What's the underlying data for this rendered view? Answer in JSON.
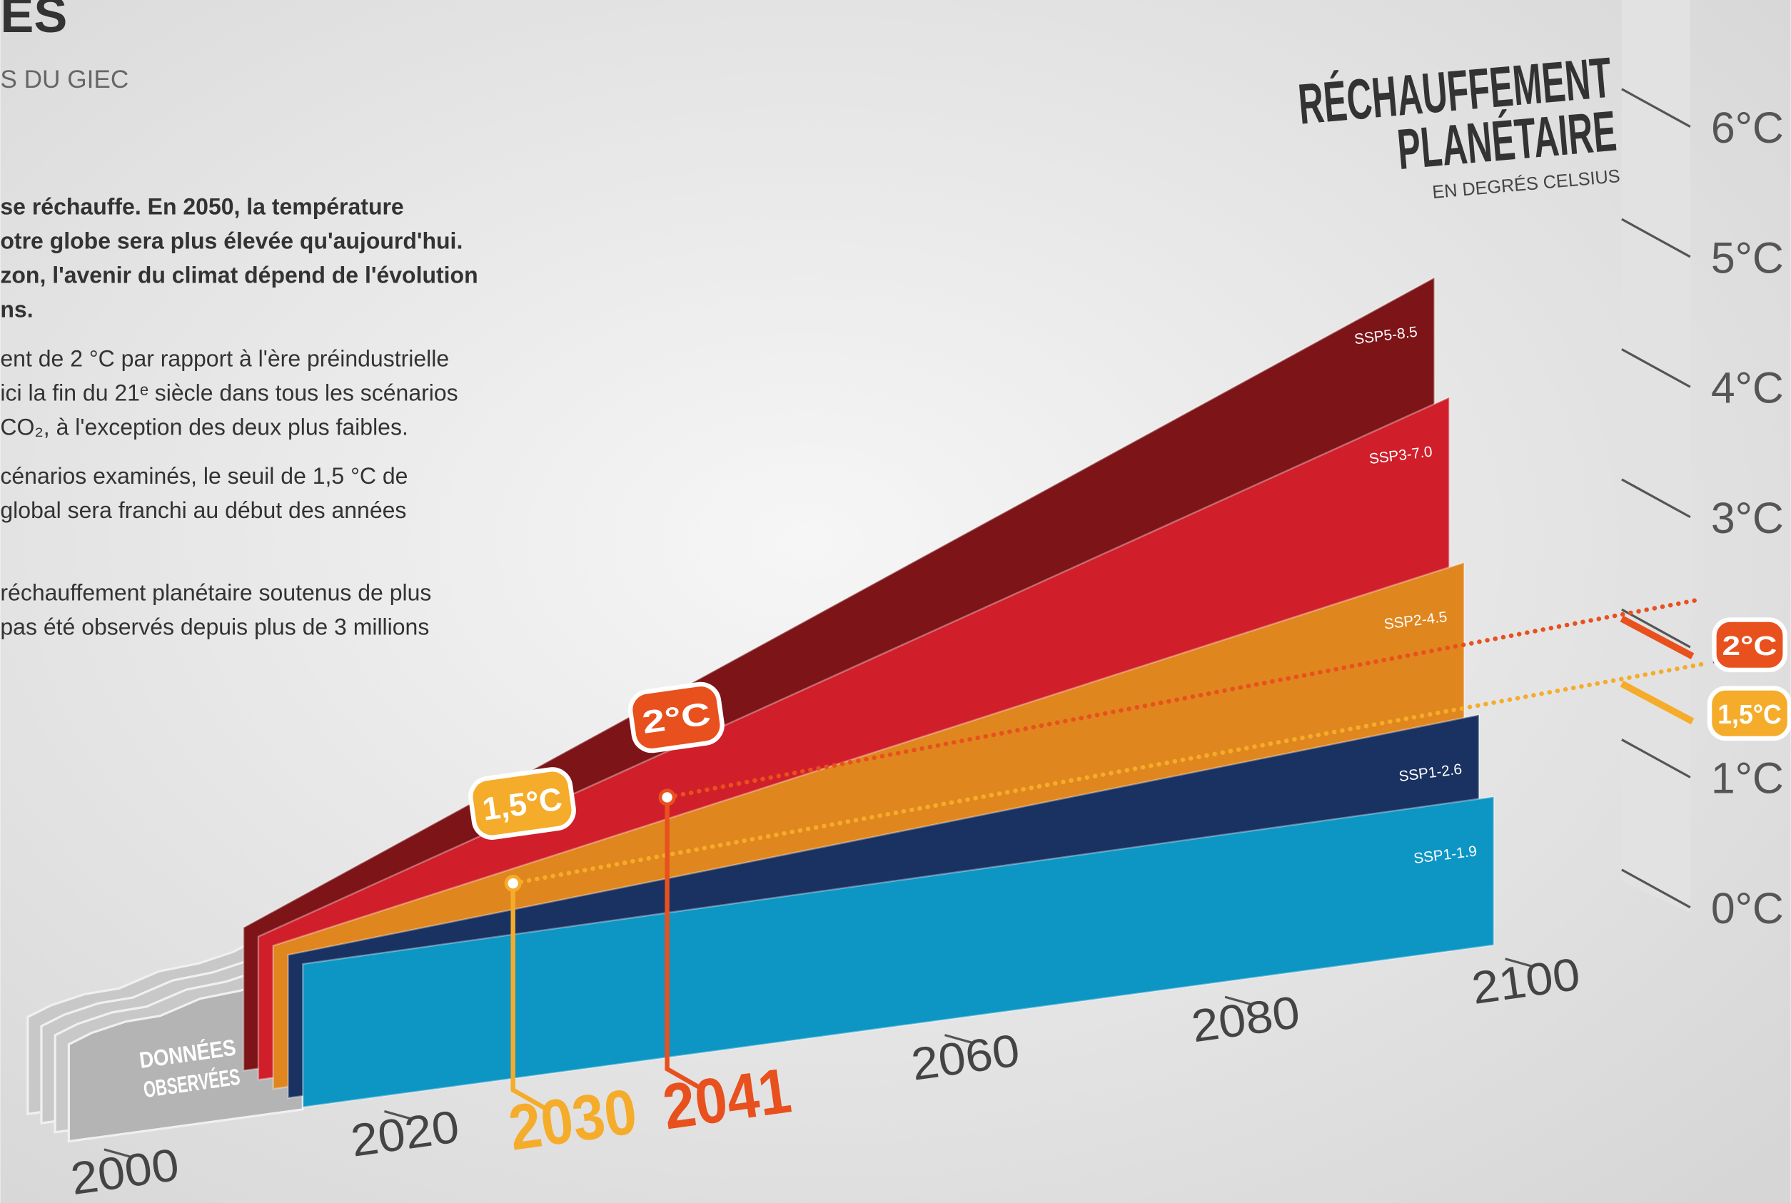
{
  "chart_data": {
    "type": "area",
    "title": "RÉCHAUFFEMENT",
    "title_line2": "PLANÉTAIRE",
    "subtitle": "EN DEGRÉS CELSIUS",
    "observed_label": [
      "DONNÉES",
      "OBSERVÉES"
    ],
    "x": [
      2015,
      2100
    ],
    "series": [
      {
        "name": "SSP1-1.9",
        "color": "#0d96c4",
        "values": [
          1.1,
          1.14
        ]
      },
      {
        "name": "SSP1-2.6",
        "color": "#1a3262",
        "values": [
          1.1,
          1.7
        ]
      },
      {
        "name": "SSP2-4.5",
        "color": "#e0861e",
        "values": [
          1.1,
          2.8
        ]
      },
      {
        "name": "SSP3-7.0",
        "color": "#d01f2a",
        "values": [
          1.1,
          4.0
        ]
      },
      {
        "name": "SSP5-8.5",
        "color": "#7d1418",
        "values": [
          1.1,
          4.85
        ]
      }
    ],
    "xlim": [
      2000,
      2100
    ],
    "xticks": [
      2000,
      2020,
      2060,
      2080,
      2100
    ],
    "ylim": [
      0,
      6
    ],
    "yticks": [
      {
        "value": 0,
        "label": "0°C"
      },
      {
        "value": 1,
        "label": "1°C"
      },
      {
        "value": 2,
        "label": "2°C"
      },
      {
        "value": 3,
        "label": "3°C"
      },
      {
        "value": 4,
        "label": "4°C"
      },
      {
        "value": 5,
        "label": "5°C"
      },
      {
        "value": 6,
        "label": "6°C"
      }
    ],
    "thresholds": [
      {
        "temperature": 1.5,
        "temperature_label": "1,5°C",
        "year": 2030,
        "color": "#f5ac2a"
      },
      {
        "temperature": 2,
        "temperature_label": "2°C",
        "year": 2041,
        "color": "#e8501e"
      }
    ]
  },
  "intro": {
    "title": "ES",
    "subtitle": "S DU GIEC",
    "paragraphs": [
      [
        "se réchauffe. En 2050,  la température",
        "otre globe sera plus élevée qu'aujourd'hui.",
        "zon, l'avenir du climat dépend de l'évolution",
        "ns."
      ],
      [
        "ent de 2 °C par rapport à l'ère préindustrielle",
        "ici la fin du 21ᵉ siècle dans tous les scénarios",
        "CO₂, à l'exception des deux plus faibles."
      ],
      [
        "cénarios examinés, le seuil de 1,5 °C de",
        "global sera franchi au début des années"
      ],
      [
        "réchauffement planétaire soutenus de plus",
        "pas été observés depuis plus de 3 millions"
      ]
    ]
  }
}
